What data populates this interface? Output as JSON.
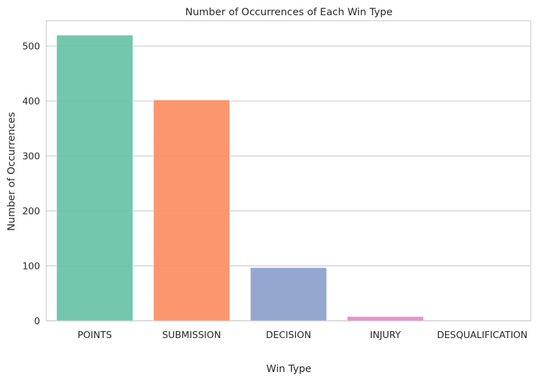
{
  "chart_data": {
    "type": "bar",
    "title": "Number of Occurrences of Each Win Type",
    "xlabel": "Win Type",
    "ylabel": "Number of Occurrences",
    "categories": [
      "POINTS",
      "SUBMISSION",
      "DECISION",
      "INJURY",
      "DESQUALIFICATION"
    ],
    "values": [
      520,
      402,
      97,
      8,
      1
    ],
    "colors": [
      "#66c2a5",
      "#fc8d62",
      "#8da0cb",
      "#e78ac3",
      "#a6d854"
    ],
    "ylim": [
      0,
      546
    ],
    "yticks": [
      0,
      100,
      200,
      300,
      400,
      500
    ],
    "grid": "horizontal",
    "legend": "none"
  }
}
